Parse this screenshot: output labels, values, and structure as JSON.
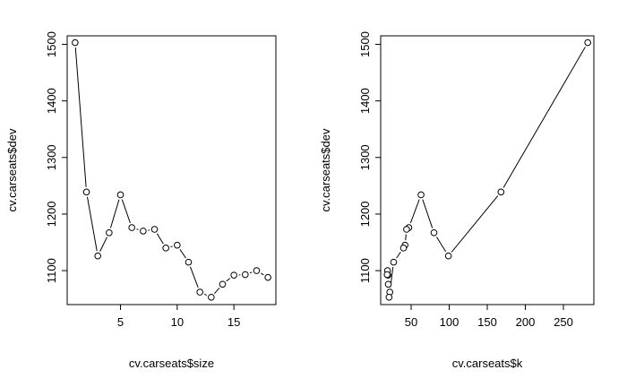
{
  "chart_data": [
    {
      "type": "line",
      "xlabel": "cv.carseats$size",
      "ylabel": "cv.carseats$dev",
      "xlim": [
        0.3,
        18.7
      ],
      "ylim": [
        1040,
        1515
      ],
      "xticks": [
        5,
        10,
        15
      ],
      "yticks": [
        1100,
        1200,
        1300,
        1400,
        1500
      ],
      "x": [
        1,
        2,
        3,
        4,
        5,
        6,
        7,
        8,
        9,
        10,
        11,
        12,
        13,
        14,
        15,
        16,
        17,
        18
      ],
      "y": [
        1503,
        1239,
        1126,
        1167,
        1234,
        1176,
        1170,
        1173,
        1140,
        1145,
        1115,
        1062,
        1053,
        1076,
        1092,
        1093,
        1100,
        1088
      ]
    },
    {
      "type": "line",
      "xlabel": "cv.carseats$k",
      "ylabel": "cv.carseats$dev",
      "xlim": [
        10,
        290
      ],
      "ylim": [
        1040,
        1515
      ],
      "xticks": [
        50,
        100,
        150,
        200,
        250
      ],
      "yticks": [
        1100,
        1200,
        1300,
        1400,
        1500
      ],
      "x": [
        282,
        168,
        99,
        80,
        63,
        47,
        44,
        42,
        40,
        27,
        22,
        21,
        20,
        19.5,
        19,
        18.5
      ],
      "y": [
        1503,
        1239,
        1126,
        1167,
        1234,
        1176,
        1173,
        1145,
        1140,
        1115,
        1062,
        1053,
        1076,
        1092,
        1100,
        1093
      ]
    }
  ]
}
